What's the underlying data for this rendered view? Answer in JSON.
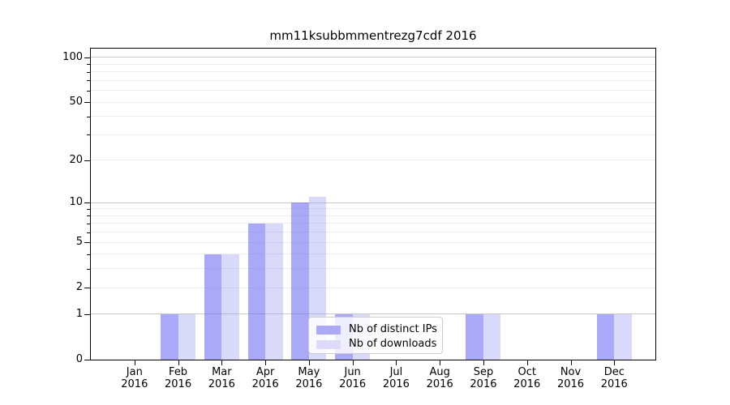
{
  "figure": {
    "background": "#ffffff",
    "text_color": "#000000",
    "spine_color": "#000000"
  },
  "chart_data": {
    "type": "bar",
    "title": "mm11ksubbmmentrezg7cdf 2016",
    "categories": [
      "Jan 2016",
      "Feb 2016",
      "Mar 2016",
      "Apr 2016",
      "May 2016",
      "Jun 2016",
      "Jul 2016",
      "Aug 2016",
      "Sep 2016",
      "Oct 2016",
      "Nov 2016",
      "Dec 2016"
    ],
    "series": [
      {
        "name": "Nb of distinct IPs",
        "values": [
          0,
          1,
          4,
          7,
          10,
          1,
          0,
          0,
          1,
          0,
          0,
          1
        ],
        "color": "#aaaaf6",
        "bar_fill": "rgba(101,101,242,0.56)"
      },
      {
        "name": "Nb of downloads",
        "values": [
          0,
          1,
          4,
          7,
          11,
          1,
          0,
          0,
          1,
          0,
          0,
          1
        ],
        "color": "#dcdcfa",
        "bar_fill": "rgba(150,150,242,0.36)"
      }
    ],
    "yscale": "log1p",
    "ylim": [
      0,
      117
    ],
    "yticks": [
      0,
      1,
      2,
      5,
      10,
      20,
      50,
      100
    ],
    "grid": {
      "major_values": [
        1,
        10,
        100
      ],
      "minor_values": [
        2,
        3,
        4,
        5,
        6,
        7,
        8,
        9,
        20,
        30,
        40,
        50,
        60,
        70,
        80,
        90
      ],
      "major_color": "#c9c9c9",
      "minor_color": "#ededed"
    },
    "legend": {
      "position": "inside-lower-center-left"
    }
  }
}
